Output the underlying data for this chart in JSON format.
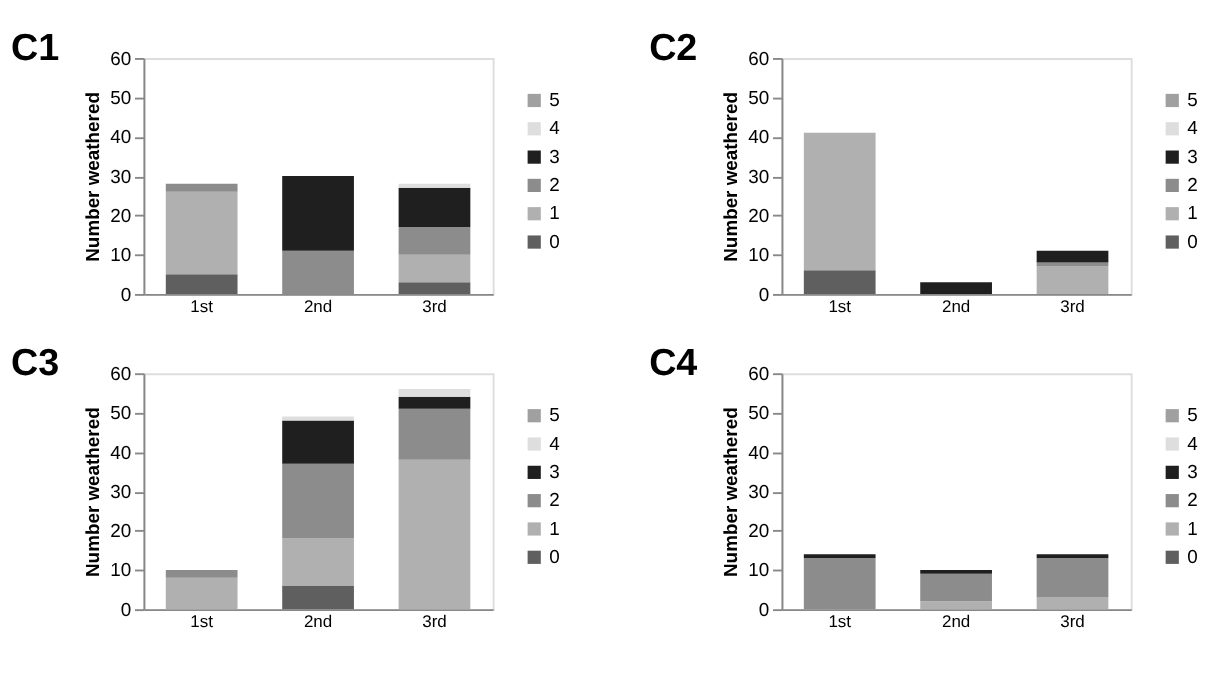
{
  "chart_data": [
    {
      "type": "bar",
      "title": "C1",
      "ylabel": "Number weathered",
      "categories": [
        "1st",
        "2nd",
        "3rd"
      ],
      "stacked": true,
      "legend": "right",
      "grid": false,
      "ylim": [
        0,
        60
      ],
      "yticks": [
        0,
        10,
        20,
        30,
        40,
        50,
        60
      ],
      "series": [
        {
          "name": "0",
          "color": "#5f5f5f",
          "values": [
            5,
            0,
            3
          ]
        },
        {
          "name": "1",
          "color": "#b0b0b0",
          "values": [
            21,
            0,
            7
          ]
        },
        {
          "name": "2",
          "color": "#8c8c8c",
          "values": [
            2,
            11,
            7
          ]
        },
        {
          "name": "3",
          "color": "#1f1f1f",
          "values": [
            0,
            19,
            10
          ]
        },
        {
          "name": "4",
          "color": "#dedede",
          "values": [
            0,
            0,
            1
          ]
        },
        {
          "name": "5",
          "color": "#a0a0a0",
          "values": [
            0,
            0,
            0
          ]
        }
      ]
    },
    {
      "type": "bar",
      "title": "C2",
      "ylabel": "Number weathered",
      "categories": [
        "1st",
        "2nd",
        "3rd"
      ],
      "stacked": true,
      "legend": "right",
      "grid": false,
      "ylim": [
        0,
        60
      ],
      "yticks": [
        0,
        10,
        20,
        30,
        40,
        50,
        60
      ],
      "series": [
        {
          "name": "0",
          "color": "#5f5f5f",
          "values": [
            6,
            0,
            0
          ]
        },
        {
          "name": "1",
          "color": "#b0b0b0",
          "values": [
            35,
            0,
            7
          ]
        },
        {
          "name": "2",
          "color": "#8c8c8c",
          "values": [
            0,
            0,
            1
          ]
        },
        {
          "name": "3",
          "color": "#1f1f1f",
          "values": [
            0,
            3,
            3
          ]
        },
        {
          "name": "4",
          "color": "#dedede",
          "values": [
            0,
            0,
            0
          ]
        },
        {
          "name": "5",
          "color": "#a0a0a0",
          "values": [
            0,
            0,
            0
          ]
        }
      ]
    },
    {
      "type": "bar",
      "title": "C3",
      "ylabel": "Number weathered",
      "categories": [
        "1st",
        "2nd",
        "3rd"
      ],
      "stacked": true,
      "legend": "right",
      "grid": false,
      "ylim": [
        0,
        60
      ],
      "yticks": [
        0,
        10,
        20,
        30,
        40,
        50,
        60
      ],
      "series": [
        {
          "name": "0",
          "color": "#5f5f5f",
          "values": [
            0,
            6,
            0
          ]
        },
        {
          "name": "1",
          "color": "#b0b0b0",
          "values": [
            8,
            12,
            38
          ]
        },
        {
          "name": "2",
          "color": "#8c8c8c",
          "values": [
            2,
            19,
            13
          ]
        },
        {
          "name": "3",
          "color": "#1f1f1f",
          "values": [
            0,
            11,
            3
          ]
        },
        {
          "name": "4",
          "color": "#dedede",
          "values": [
            0,
            1,
            2
          ]
        },
        {
          "name": "5",
          "color": "#a0a0a0",
          "values": [
            0,
            0,
            0
          ]
        }
      ]
    },
    {
      "type": "bar",
      "title": "C4",
      "ylabel": "Number weathered",
      "categories": [
        "1st",
        "2nd",
        "3rd"
      ],
      "stacked": true,
      "legend": "right",
      "grid": false,
      "ylim": [
        0,
        60
      ],
      "yticks": [
        0,
        10,
        20,
        30,
        40,
        50,
        60
      ],
      "series": [
        {
          "name": "0",
          "color": "#5f5f5f",
          "values": [
            0,
            0,
            0
          ]
        },
        {
          "name": "1",
          "color": "#b0b0b0",
          "values": [
            0,
            2,
            3
          ]
        },
        {
          "name": "2",
          "color": "#8c8c8c",
          "values": [
            13,
            7,
            10
          ]
        },
        {
          "name": "3",
          "color": "#1f1f1f",
          "values": [
            1,
            1,
            1
          ]
        },
        {
          "name": "4",
          "color": "#dedede",
          "values": [
            0,
            0,
            0
          ]
        },
        {
          "name": "5",
          "color": "#a0a0a0",
          "values": [
            0,
            0,
            0
          ]
        }
      ]
    }
  ]
}
